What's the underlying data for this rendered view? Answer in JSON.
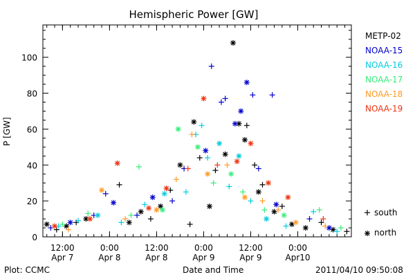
{
  "footer": {
    "plot_label": "Plot: CCMC",
    "timestamp": "2011/04/10 09:50:08"
  },
  "chart_data": {
    "type": "scatter",
    "title": "Hemispheric Power [GW]",
    "xlabel": "Date and Time",
    "ylabel": "P [GW]",
    "ylim": [
      0,
      118
    ],
    "yticks": [
      0,
      20,
      40,
      60,
      80,
      100
    ],
    "xlim": [
      "2011-04-07T07:00",
      "2011-04-10T13:40"
    ],
    "xticks": [
      {
        "time": "2011-04-07T12:00",
        "line1": "12:00",
        "line2": "Apr 7"
      },
      {
        "time": "2011-04-08T00:00",
        "line1": "0:00",
        "line2": "Apr 8"
      },
      {
        "time": "2011-04-08T12:00",
        "line1": "12:00",
        "line2": "Apr 8"
      },
      {
        "time": "2011-04-09T00:00",
        "line1": "0:00",
        "line2": "Apr 9"
      },
      {
        "time": "2011-04-09T12:00",
        "line1": "12:00",
        "line2": "Apr 9"
      },
      {
        "time": "2011-04-10T00:00",
        "line1": "0:00",
        "line2": "Apr10"
      }
    ],
    "legend_position": "right",
    "marker_legend": [
      {
        "symbol": "+",
        "label": "south"
      },
      {
        "symbol": "*",
        "label": "north"
      }
    ],
    "series": [
      {
        "name": "METP-02",
        "color": "#000000",
        "points": [
          {
            "t": "2011-04-07T08:00",
            "v": 7,
            "m": "*"
          },
          {
            "t": "2011-04-07T10:30",
            "v": 4,
            "m": "+"
          },
          {
            "t": "2011-04-07T13:00",
            "v": 6,
            "m": "*"
          },
          {
            "t": "2011-04-07T15:30",
            "v": 8,
            "m": "+"
          },
          {
            "t": "2011-04-07T18:00",
            "v": 10,
            "m": "*"
          },
          {
            "t": "2011-04-08T02:30",
            "v": 29,
            "m": "+"
          },
          {
            "t": "2011-04-08T05:00",
            "v": 8,
            "m": "*"
          },
          {
            "t": "2011-04-08T08:00",
            "v": 14,
            "m": "*"
          },
          {
            "t": "2011-04-08T10:30",
            "v": 10,
            "m": "+"
          },
          {
            "t": "2011-04-08T13:00",
            "v": 17,
            "m": "*"
          },
          {
            "t": "2011-04-08T15:30",
            "v": 26,
            "m": "+"
          },
          {
            "t": "2011-04-08T18:00",
            "v": 40,
            "m": "*"
          },
          {
            "t": "2011-04-08T20:30",
            "v": 7,
            "m": "+"
          },
          {
            "t": "2011-04-08T21:30",
            "v": 64,
            "m": "*"
          },
          {
            "t": "2011-04-08T23:00",
            "v": 44,
            "m": "+"
          },
          {
            "t": "2011-04-09T01:30",
            "v": 17,
            "m": "*"
          },
          {
            "t": "2011-04-09T03:00",
            "v": 37,
            "m": "+"
          },
          {
            "t": "2011-04-09T05:30",
            "v": 46,
            "m": "*"
          },
          {
            "t": "2011-04-09T07:30",
            "v": 108,
            "m": "*"
          },
          {
            "t": "2011-04-09T09:00",
            "v": 63,
            "m": "*"
          },
          {
            "t": "2011-04-09T10:30",
            "v": 54,
            "m": "*"
          },
          {
            "t": "2011-04-09T11:00",
            "v": 62,
            "m": "+"
          },
          {
            "t": "2011-04-09T13:00",
            "v": 40,
            "m": "+"
          },
          {
            "t": "2011-04-09T14:00",
            "v": 25,
            "m": "*"
          },
          {
            "t": "2011-04-09T15:00",
            "v": 29,
            "m": "+"
          },
          {
            "t": "2011-04-09T18:00",
            "v": 14,
            "m": "*"
          },
          {
            "t": "2011-04-09T20:00",
            "v": 17,
            "m": "+"
          },
          {
            "t": "2011-04-09T22:30",
            "v": 7,
            "m": "*"
          },
          {
            "t": "2011-04-10T02:00",
            "v": 5,
            "m": "*"
          },
          {
            "t": "2011-04-10T06:00",
            "v": 8,
            "m": "+"
          },
          {
            "t": "2011-04-10T09:00",
            "v": 4,
            "m": "*"
          },
          {
            "t": "2011-04-10T12:30",
            "v": 3,
            "m": "+"
          }
        ]
      },
      {
        "name": "NOAA-15",
        "color": "#0000cc",
        "points": [
          {
            "t": "2011-04-07T09:00",
            "v": 5,
            "m": "+"
          },
          {
            "t": "2011-04-07T14:00",
            "v": 8,
            "m": "*"
          },
          {
            "t": "2011-04-07T20:00",
            "v": 12,
            "m": "+"
          },
          {
            "t": "2011-04-07T23:00",
            "v": 24,
            "m": "+"
          },
          {
            "t": "2011-04-08T01:00",
            "v": 19,
            "m": "*"
          },
          {
            "t": "2011-04-08T07:00",
            "v": 12,
            "m": "+"
          },
          {
            "t": "2011-04-08T11:00",
            "v": 22,
            "m": "*"
          },
          {
            "t": "2011-04-08T16:00",
            "v": 20,
            "m": "+"
          },
          {
            "t": "2011-04-08T19:00",
            "v": 38,
            "m": "+"
          },
          {
            "t": "2011-04-09T00:30",
            "v": 48,
            "m": "*"
          },
          {
            "t": "2011-04-09T02:00",
            "v": 95,
            "m": "+"
          },
          {
            "t": "2011-04-09T04:30",
            "v": 75,
            "m": "+"
          },
          {
            "t": "2011-04-09T05:30",
            "v": 77,
            "m": "+"
          },
          {
            "t": "2011-04-09T08:00",
            "v": 63,
            "m": "*"
          },
          {
            "t": "2011-04-09T09:30",
            "v": 70,
            "m": "*"
          },
          {
            "t": "2011-04-09T11:00",
            "v": 86,
            "m": "*"
          },
          {
            "t": "2011-04-09T12:30",
            "v": 79,
            "m": "+"
          },
          {
            "t": "2011-04-09T14:00",
            "v": 38,
            "m": "+"
          },
          {
            "t": "2011-04-09T17:30",
            "v": 79,
            "m": "+"
          },
          {
            "t": "2011-04-09T18:30",
            "v": 18,
            "m": "*"
          },
          {
            "t": "2011-04-10T03:00",
            "v": 10,
            "m": "+"
          },
          {
            "t": "2011-04-10T08:00",
            "v": 5,
            "m": "*"
          }
        ]
      },
      {
        "name": "NOAA-16",
        "color": "#00ccdd",
        "points": [
          {
            "t": "2011-04-07T11:00",
            "v": 6,
            "m": "+"
          },
          {
            "t": "2011-04-07T16:00",
            "v": 9,
            "m": "+"
          },
          {
            "t": "2011-04-07T21:00",
            "v": 12,
            "m": "*"
          },
          {
            "t": "2011-04-08T03:00",
            "v": 8,
            "m": "+"
          },
          {
            "t": "2011-04-08T09:00",
            "v": 18,
            "m": "+"
          },
          {
            "t": "2011-04-08T14:00",
            "v": 24,
            "m": "*"
          },
          {
            "t": "2011-04-08T19:30",
            "v": 25,
            "m": "+"
          },
          {
            "t": "2011-04-08T22:00",
            "v": 57,
            "m": "+"
          },
          {
            "t": "2011-04-08T23:30",
            "v": 62,
            "m": "+"
          },
          {
            "t": "2011-04-09T01:00",
            "v": 44,
            "m": "+"
          },
          {
            "t": "2011-04-09T04:00",
            "v": 52,
            "m": "*"
          },
          {
            "t": "2011-04-09T06:30",
            "v": 28,
            "m": "+"
          },
          {
            "t": "2011-04-09T09:00",
            "v": 45,
            "m": "*"
          },
          {
            "t": "2011-04-09T12:00",
            "v": 20,
            "m": "+"
          },
          {
            "t": "2011-04-09T16:00",
            "v": 10,
            "m": "*"
          },
          {
            "t": "2011-04-09T21:00",
            "v": 6,
            "m": "+"
          },
          {
            "t": "2011-04-10T04:00",
            "v": 14,
            "m": "+"
          },
          {
            "t": "2011-04-10T10:00",
            "v": 3,
            "m": "+"
          }
        ]
      },
      {
        "name": "NOAA-17",
        "color": "#33ee77",
        "points": [
          {
            "t": "2011-04-07T12:00",
            "v": 7,
            "m": "+"
          },
          {
            "t": "2011-04-07T18:30",
            "v": 13,
            "m": "+"
          },
          {
            "t": "2011-04-08T05:30",
            "v": 12,
            "m": "+"
          },
          {
            "t": "2011-04-08T07:30",
            "v": 39,
            "m": "+"
          },
          {
            "t": "2011-04-08T13:30",
            "v": 15,
            "m": "*"
          },
          {
            "t": "2011-04-08T17:30",
            "v": 60,
            "m": "*"
          },
          {
            "t": "2011-04-08T22:30",
            "v": 50,
            "m": "*"
          },
          {
            "t": "2011-04-09T02:30",
            "v": 30,
            "m": "+"
          },
          {
            "t": "2011-04-09T07:00",
            "v": 35,
            "m": "*"
          },
          {
            "t": "2011-04-09T10:00",
            "v": 25,
            "m": "+"
          },
          {
            "t": "2011-04-09T15:30",
            "v": 15,
            "m": "+"
          },
          {
            "t": "2011-04-09T20:30",
            "v": 12,
            "m": "*"
          },
          {
            "t": "2011-04-10T05:30",
            "v": 15,
            "m": "+"
          },
          {
            "t": "2011-04-10T11:00",
            "v": 5,
            "m": "+"
          }
        ]
      },
      {
        "name": "NOAA-18",
        "color": "#ff9922",
        "points": [
          {
            "t": "2011-04-07T13:30",
            "v": 4,
            "m": "+"
          },
          {
            "t": "2011-04-07T22:00",
            "v": 26,
            "m": "*"
          },
          {
            "t": "2011-04-08T04:00",
            "v": 10,
            "m": "+"
          },
          {
            "t": "2011-04-08T12:00",
            "v": 15,
            "m": "*"
          },
          {
            "t": "2011-04-08T17:00",
            "v": 32,
            "m": "+"
          },
          {
            "t": "2011-04-08T21:00",
            "v": 57,
            "m": "+"
          },
          {
            "t": "2011-04-09T01:00",
            "v": 35,
            "m": "*"
          },
          {
            "t": "2011-04-09T06:00",
            "v": 40,
            "m": "+"
          },
          {
            "t": "2011-04-09T10:30",
            "v": 22,
            "m": "*"
          },
          {
            "t": "2011-04-09T15:00",
            "v": 20,
            "m": "+"
          },
          {
            "t": "2011-04-09T19:00",
            "v": 15,
            "m": "+"
          },
          {
            "t": "2011-04-09T23:30",
            "v": 8,
            "m": "*"
          },
          {
            "t": "2011-04-10T07:00",
            "v": 6,
            "m": "+"
          }
        ]
      },
      {
        "name": "NOAA-19",
        "color": "#ee3311",
        "points": [
          {
            "t": "2011-04-07T10:00",
            "v": 6,
            "m": "*"
          },
          {
            "t": "2011-04-07T19:00",
            "v": 10,
            "m": "*"
          },
          {
            "t": "2011-04-08T02:00",
            "v": 41,
            "m": "*"
          },
          {
            "t": "2011-04-08T10:00",
            "v": 16,
            "m": "*"
          },
          {
            "t": "2011-04-08T14:30",
            "v": 27,
            "m": "*"
          },
          {
            "t": "2011-04-08T20:00",
            "v": 38,
            "m": "+"
          },
          {
            "t": "2011-04-09T00:00",
            "v": 77,
            "m": "*"
          },
          {
            "t": "2011-04-09T03:30",
            "v": 40,
            "m": "+"
          },
          {
            "t": "2011-04-09T08:30",
            "v": 42,
            "m": "*"
          },
          {
            "t": "2011-04-09T12:00",
            "v": 52,
            "m": "*"
          },
          {
            "t": "2011-04-09T16:30",
            "v": 30,
            "m": "*"
          },
          {
            "t": "2011-04-09T21:30",
            "v": 22,
            "m": "*"
          },
          {
            "t": "2011-04-10T06:30",
            "v": 10,
            "m": "+"
          }
        ]
      }
    ]
  }
}
